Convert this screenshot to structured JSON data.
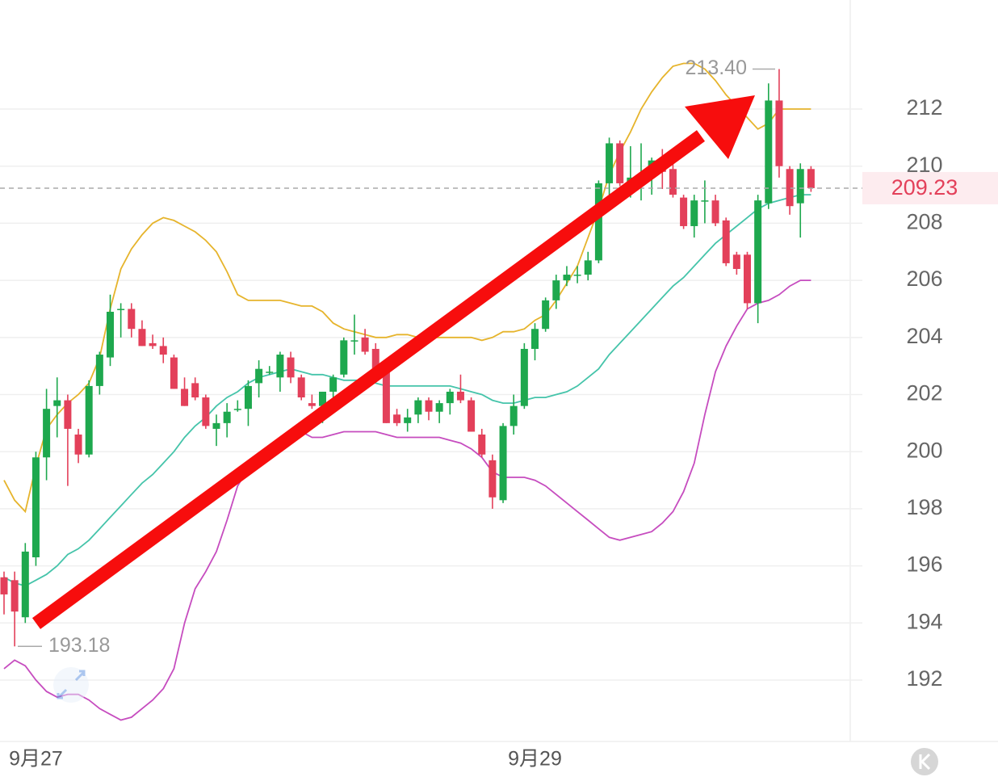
{
  "chart_data": {
    "type": "candlestick",
    "categories": [
      null,
      null,
      null,
      "9月27",
      null,
      null,
      null,
      null,
      null,
      null,
      null,
      null,
      null,
      null,
      null,
      null,
      null,
      null,
      null,
      null,
      null,
      null,
      null,
      null,
      null,
      null,
      null,
      null,
      null,
      null,
      null,
      null,
      null,
      null,
      null,
      null,
      null,
      null,
      null,
      null,
      null,
      null,
      null,
      null,
      null,
      null,
      null,
      null,
      null,
      null,
      "9月29",
      null,
      null,
      null,
      null,
      null,
      null,
      null,
      null,
      null,
      null,
      null,
      null,
      null,
      null,
      null,
      null,
      null,
      null,
      null,
      null,
      null,
      null,
      null,
      null,
      null,
      null
    ],
    "open": [
      195.6,
      195.5,
      194.2,
      196.3,
      199.8,
      201.6,
      201.8,
      200.6,
      199.9,
      202.3,
      203.3,
      205.0,
      205.0,
      204.3,
      203.8,
      203.7,
      203.3,
      202.2,
      202.4,
      201.9,
      200.8,
      201.0,
      201.5,
      201.5,
      202.4,
      202.8,
      202.6,
      203.3,
      202.6,
      201.7,
      201.6,
      202.1,
      202.7,
      203.9,
      204.0,
      203.6,
      203.0,
      201.3,
      201.0,
      201.3,
      201.8,
      201.4,
      201.7,
      202.1,
      201.8,
      200.6,
      199.7,
      198.3,
      200.9,
      201.6,
      203.6,
      204.3,
      205.3,
      206.0,
      206.2,
      206.2,
      206.7,
      209.4,
      210.8,
      209.4,
      209.6,
      209.9,
      210.2,
      209.9,
      208.9,
      207.9,
      208.8,
      208.8,
      208.1,
      206.9,
      206.9,
      205.2,
      208.7,
      212.3,
      209.9,
      208.7,
      209.9
    ],
    "high": [
      195.8,
      195.8,
      196.8,
      200.0,
      202.2,
      202.6,
      202.0,
      200.8,
      202.5,
      203.5,
      205.5,
      205.2,
      205.2,
      204.6,
      204.1,
      204.0,
      203.4,
      202.6,
      202.6,
      202.0,
      201.3,
      201.7,
      201.8,
      202.5,
      203.2,
      203.0,
      203.5,
      203.5,
      202.7,
      202.0,
      202.1,
      202.7,
      204.0,
      204.8,
      204.3,
      203.8,
      203.2,
      201.5,
      201.5,
      201.9,
      201.9,
      201.8,
      202.2,
      202.7,
      201.9,
      200.8,
      199.9,
      201.0,
      202.0,
      203.8,
      204.5,
      205.4,
      206.2,
      206.5,
      206.5,
      207.0,
      209.5,
      211.0,
      210.9,
      210.7,
      210.8,
      210.3,
      210.6,
      210.1,
      209.0,
      209.0,
      209.5,
      209.0,
      208.2,
      207.0,
      207.0,
      209.0,
      212.9,
      213.4,
      210.0,
      210.1,
      210.0
    ],
    "low": [
      194.3,
      193.18,
      194.0,
      196.0,
      199.0,
      200.5,
      198.8,
      199.6,
      199.8,
      202.0,
      203.0,
      204.0,
      204.0,
      203.7,
      203.6,
      203.1,
      202.2,
      201.6,
      201.8,
      200.8,
      200.2,
      200.5,
      201.4,
      200.9,
      201.9,
      202.7,
      202.1,
      202.4,
      201.8,
      201.5,
      201.0,
      201.9,
      202.6,
      203.4,
      203.4,
      202.8,
      201.0,
      200.9,
      200.7,
      201.0,
      201.1,
      201.0,
      201.3,
      201.7,
      200.7,
      199.8,
      198.0,
      198.2,
      200.6,
      201.5,
      203.2,
      204.2,
      205.0,
      205.8,
      205.9,
      206.0,
      206.6,
      209.0,
      209.3,
      208.9,
      208.8,
      209.0,
      209.2,
      208.9,
      207.8,
      207.5,
      208.0,
      207.9,
      206.5,
      206.2,
      205.0,
      204.5,
      208.5,
      209.6,
      208.3,
      207.5,
      209.1
    ],
    "close": [
      195.0,
      194.4,
      196.5,
      199.8,
      201.5,
      201.8,
      200.8,
      199.9,
      202.3,
      203.4,
      204.9,
      205.0,
      204.3,
      203.7,
      203.7,
      203.4,
      202.2,
      201.6,
      201.9,
      200.9,
      201.0,
      201.4,
      201.5,
      202.3,
      202.9,
      202.8,
      203.4,
      202.6,
      201.9,
      201.6,
      202.1,
      202.6,
      203.9,
      203.9,
      203.5,
      202.9,
      201.0,
      201.0,
      201.2,
      201.8,
      201.4,
      201.7,
      202.1,
      201.8,
      200.7,
      199.9,
      198.4,
      200.9,
      201.6,
      203.6,
      204.3,
      205.3,
      206.0,
      206.2,
      206.2,
      206.7,
      209.4,
      210.8,
      209.4,
      209.6,
      209.6,
      210.2,
      209.8,
      209.0,
      207.9,
      208.8,
      208.8,
      208.0,
      206.6,
      206.4,
      205.2,
      208.8,
      212.3,
      210.0,
      208.6,
      209.9,
      209.23
    ],
    "up_color": "#1ea84e",
    "down_color": "#e3405a",
    "bands": [
      {
        "color": "#e6b42c",
        "values": [
          199.0,
          198.3,
          197.9,
          199.5,
          200.8,
          201.3,
          201.7,
          202.0,
          202.4,
          203.3,
          205.0,
          206.4,
          207.1,
          207.6,
          208.0,
          208.2,
          208.1,
          207.9,
          207.7,
          207.4,
          207.0,
          206.3,
          205.5,
          205.3,
          205.3,
          205.3,
          205.3,
          205.2,
          205.1,
          205.1,
          204.9,
          204.5,
          204.3,
          204.2,
          204.1,
          204.0,
          204.0,
          204.1,
          204.1,
          204.0,
          204.0,
          204.0,
          204.0,
          204.0,
          204.0,
          203.9,
          204.0,
          204.2,
          204.2,
          204.3,
          204.6,
          204.8,
          205.3,
          205.9,
          206.5,
          207.5,
          208.5,
          209.7,
          210.5,
          211.2,
          212.0,
          212.6,
          213.1,
          213.5,
          213.6,
          213.6,
          213.4,
          213.0,
          212.5,
          212.1,
          211.7,
          211.3,
          211.5,
          212.0,
          212.0,
          212.0,
          212.0
        ]
      },
      {
        "color": "#45c4aa",
        "values": [
          195.6,
          195.4,
          195.3,
          195.5,
          195.7,
          196.0,
          196.4,
          196.6,
          196.9,
          197.3,
          197.7,
          198.1,
          198.5,
          198.9,
          199.2,
          199.6,
          200.0,
          200.5,
          200.9,
          201.2,
          201.6,
          201.9,
          202.1,
          202.4,
          202.6,
          202.7,
          202.8,
          202.9,
          202.8,
          202.7,
          202.7,
          202.6,
          202.5,
          202.5,
          202.5,
          202.4,
          202.3,
          202.3,
          202.3,
          202.3,
          202.3,
          202.3,
          202.3,
          202.2,
          202.1,
          202.0,
          201.8,
          201.7,
          201.7,
          201.8,
          201.9,
          201.9,
          202.0,
          202.1,
          202.3,
          202.6,
          202.9,
          203.4,
          203.8,
          204.2,
          204.6,
          205.0,
          205.4,
          205.8,
          206.1,
          206.5,
          206.9,
          207.3,
          207.6,
          207.9,
          208.2,
          208.5,
          208.7,
          208.8,
          208.9,
          209.0,
          209.0
        ]
      },
      {
        "color": "#c64cbf",
        "values": [
          192.4,
          192.7,
          192.5,
          192.0,
          191.6,
          191.4,
          191.5,
          191.5,
          191.3,
          191.0,
          190.8,
          190.6,
          190.7,
          191.0,
          191.3,
          191.7,
          192.4,
          194.0,
          195.2,
          195.8,
          196.5,
          197.6,
          198.8,
          199.4,
          199.6,
          199.8,
          200.1,
          200.6,
          200.7,
          200.5,
          200.5,
          200.6,
          200.7,
          200.7,
          200.7,
          200.7,
          200.6,
          200.5,
          200.5,
          200.5,
          200.5,
          200.5,
          200.4,
          200.3,
          200.1,
          199.8,
          199.3,
          199.1,
          199.1,
          199.1,
          199.0,
          198.8,
          198.5,
          198.2,
          197.9,
          197.6,
          197.3,
          197.0,
          196.9,
          197.0,
          197.1,
          197.2,
          197.5,
          197.9,
          198.6,
          199.6,
          201.3,
          202.8,
          203.7,
          204.4,
          205.0,
          205.2,
          205.3,
          205.5,
          205.8,
          206.0,
          206.0
        ]
      }
    ],
    "high_marker": {
      "value": 213.4,
      "label": "213.40"
    },
    "low_marker": 193.18,
    "last_price": 209.23,
    "ylim": [
      189.85,
      215.82
    ],
    "yticks": [
      192,
      194,
      196,
      198,
      200,
      202,
      204,
      206,
      208,
      210,
      212
    ],
    "grid": true
  }
}
